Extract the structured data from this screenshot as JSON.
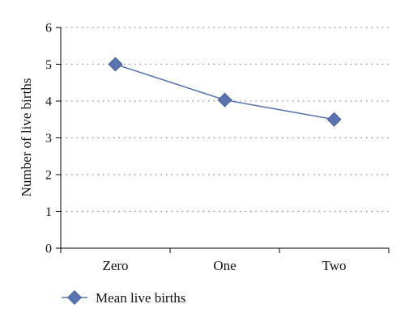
{
  "chart_data": {
    "type": "line",
    "categories": [
      "Zero",
      "One",
      "Two"
    ],
    "series": [
      {
        "name": "Mean live births",
        "values": [
          5.0,
          4.03,
          3.5
        ]
      }
    ],
    "title": "",
    "xlabel": "",
    "ylabel": "Number of live births",
    "ylim": [
      0,
      6
    ],
    "yticks": [
      0,
      1,
      2,
      3,
      4,
      5,
      6
    ],
    "grid": "horizontal dotted",
    "legend": "bottom-left",
    "marker": "diamond",
    "colors": {
      "series": "#5873AE",
      "marker_edge": "#3F5A92",
      "axis": "#000000",
      "grid": "#888888"
    }
  }
}
